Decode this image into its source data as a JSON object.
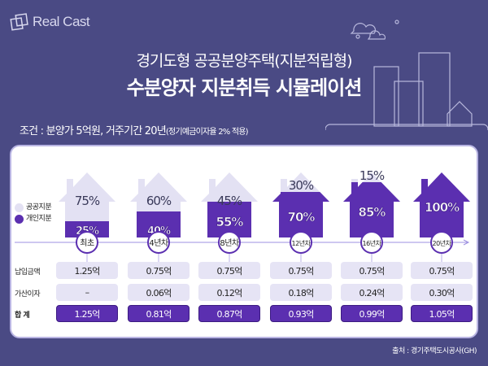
{
  "logo": {
    "text": "Real Cast"
  },
  "title": {
    "line1": "경기도형 공공분양주택(지분적립형)",
    "line2": "수분양자 지분취득 시뮬레이션"
  },
  "condition": {
    "main": "조건 : 분양가 5억원, 거주기간 20년",
    "note": "(정기예금이자율 2% 적용)"
  },
  "legend": {
    "public": "공공지분",
    "personal": "개인지분"
  },
  "colors": {
    "background": "#4a4a84",
    "public": "#e3e1f3",
    "personal": "#5b2fb0"
  },
  "stages": [
    {
      "label": "최초",
      "public": "75%",
      "personal": "25%",
      "personal_share": 25,
      "payment": "1.25억",
      "interest": "–",
      "total": "1.25억"
    },
    {
      "label": "4년차",
      "public": "60%",
      "personal": "40%",
      "personal_share": 40,
      "payment": "0.75억",
      "interest": "0.06억",
      "total": "0.81억"
    },
    {
      "label": "8년차",
      "public": "45%",
      "personal": "55%",
      "personal_share": 55,
      "payment": "0.75억",
      "interest": "0.12억",
      "total": "0.87억"
    },
    {
      "label": "12년차",
      "public": "30%",
      "personal": "70%",
      "personal_share": 70,
      "payment": "0.75억",
      "interest": "0.18억",
      "total": "0.93억"
    },
    {
      "label": "16년차",
      "public": "15%",
      "personal": "85%",
      "personal_share": 85,
      "payment": "0.75억",
      "interest": "0.24억",
      "total": "0.99억"
    },
    {
      "label": "20년차",
      "public": "",
      "personal": "100%",
      "personal_share": 100,
      "payment": "0.75억",
      "interest": "0.30억",
      "total": "1.05억"
    }
  ],
  "rows": {
    "payment": "납입금액",
    "interest": "가산이자",
    "total": "합 계"
  },
  "source": "출처 : 경기주택도시공사(GH)"
}
